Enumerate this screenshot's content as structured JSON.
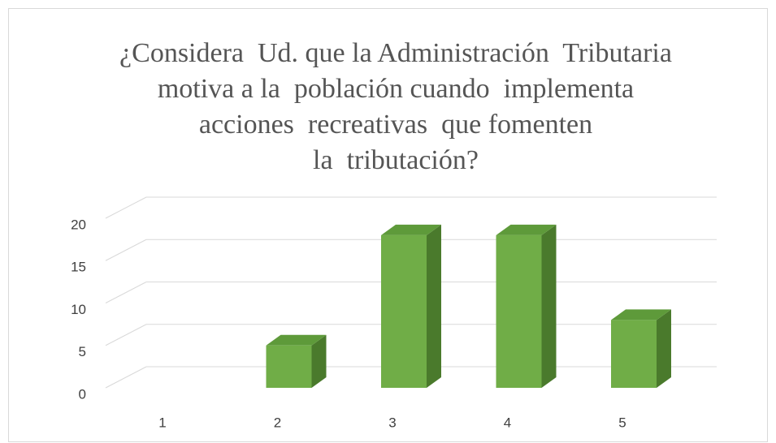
{
  "chart_data": {
    "type": "bar3d",
    "title": [
      "¿Considera  Ud. que la Administración  Tributaria",
      "motiva a la  población cuando  implementa",
      "acciones  recreativas  que fomenten",
      "la  tributación?"
    ],
    "categories": [
      "1",
      "2",
      "3",
      "4",
      "5"
    ],
    "values": [
      0,
      5,
      18,
      18,
      8
    ],
    "color": "#70ad47",
    "ylim": [
      0,
      20
    ],
    "yticks": [
      0,
      5,
      10,
      15,
      20
    ],
    "grid": true
  }
}
